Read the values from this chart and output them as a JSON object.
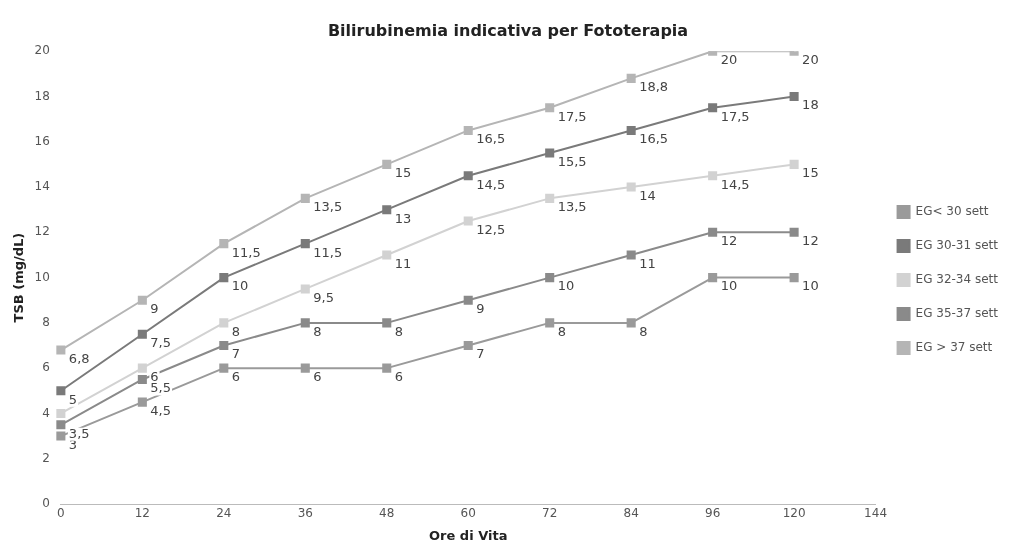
{
  "chart_data": {
    "type": "line",
    "title": "Bilirubinemia indicativa per Fototerapia",
    "xlabel": "Ore di Vita",
    "ylabel": "TSB (mg/dL)",
    "categories": [
      "0",
      "12",
      "24",
      "36",
      "48",
      "60",
      "72",
      "84",
      "96",
      "120",
      "144"
    ],
    "ylim": [
      0,
      20
    ],
    "yticks": [
      0,
      2,
      4,
      6,
      8,
      10,
      12,
      14,
      16,
      18,
      20
    ],
    "grid": false,
    "legend": "right",
    "marker": "square",
    "line_style": "solid",
    "series": [
      {
        "name": "EG< 30 sett",
        "color": "#9a9a9a",
        "values": [
          3,
          4.5,
          6,
          6,
          6,
          7,
          8,
          8,
          10,
          10,
          null
        ],
        "value_labels": [
          "3",
          "4,5",
          "6",
          "6",
          "6",
          "7",
          "8",
          "8",
          "10",
          "10",
          null
        ]
      },
      {
        "name": "EG 30-31 sett",
        "color": "#7a7a7a",
        "values": [
          5,
          7.5,
          10,
          11.5,
          13,
          14.5,
          15.5,
          16.5,
          17.5,
          18,
          null
        ],
        "value_labels": [
          "5",
          "7,5",
          "10",
          "11,5",
          "13",
          "14,5",
          "15,5",
          "16,5",
          "17,5",
          "18",
          null
        ]
      },
      {
        "name": "EG 32-34 sett",
        "color": "#d2d2d2",
        "values": [
          4,
          6,
          8,
          9.5,
          11,
          12.5,
          13.5,
          14,
          14.5,
          15,
          null
        ],
        "value_labels": [
          null,
          "6",
          "8",
          "9,5",
          "11",
          "12,5",
          "13,5",
          "14",
          "14,5",
          "15",
          null
        ]
      },
      {
        "name": "EG 35-37 sett",
        "color": "#8a8a8a",
        "values": [
          3.5,
          5.5,
          7,
          8,
          8,
          9,
          10,
          11,
          12,
          12,
          null
        ],
        "value_labels": [
          "3,5",
          "5,5",
          "7",
          "8",
          "8",
          "9",
          "10",
          "11",
          "12",
          "12",
          null
        ]
      },
      {
        "name": "EG > 37 sett",
        "color": "#b5b5b5",
        "values": [
          6.8,
          9,
          11.5,
          13.5,
          15,
          16.5,
          17.5,
          18.8,
          20,
          20,
          null
        ],
        "value_labels": [
          "6,8",
          "9",
          "11,5",
          "13,5",
          "15",
          "16,5",
          "17,5",
          "18,8",
          "20",
          "20",
          null
        ]
      }
    ]
  }
}
